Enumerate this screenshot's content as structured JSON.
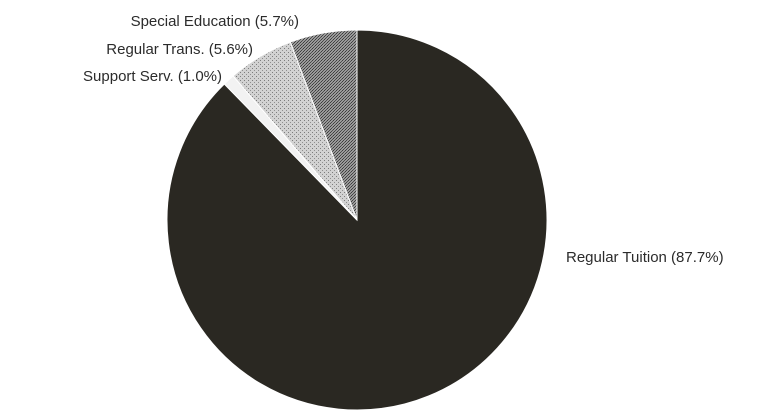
{
  "chart_data": {
    "type": "pie",
    "title": "",
    "start_angle_deg": 0,
    "direction": "clockwise",
    "slices": [
      {
        "label": "Regular Tuition (87.7%)",
        "value": 87.7,
        "color": "#2a2822",
        "texture": "solid"
      },
      {
        "label": "Support Serv. (1.0%)",
        "value": 1.0,
        "color": "#f2f2f2",
        "texture": "solid"
      },
      {
        "label": "Regular Trans. (5.6%)",
        "value": 5.6,
        "color": "#c4c4c4",
        "texture": "stipple"
      },
      {
        "label": "Special Education (5.7%)",
        "value": 5.7,
        "color": "#8a8a8a",
        "texture": "crosshatch"
      }
    ]
  }
}
